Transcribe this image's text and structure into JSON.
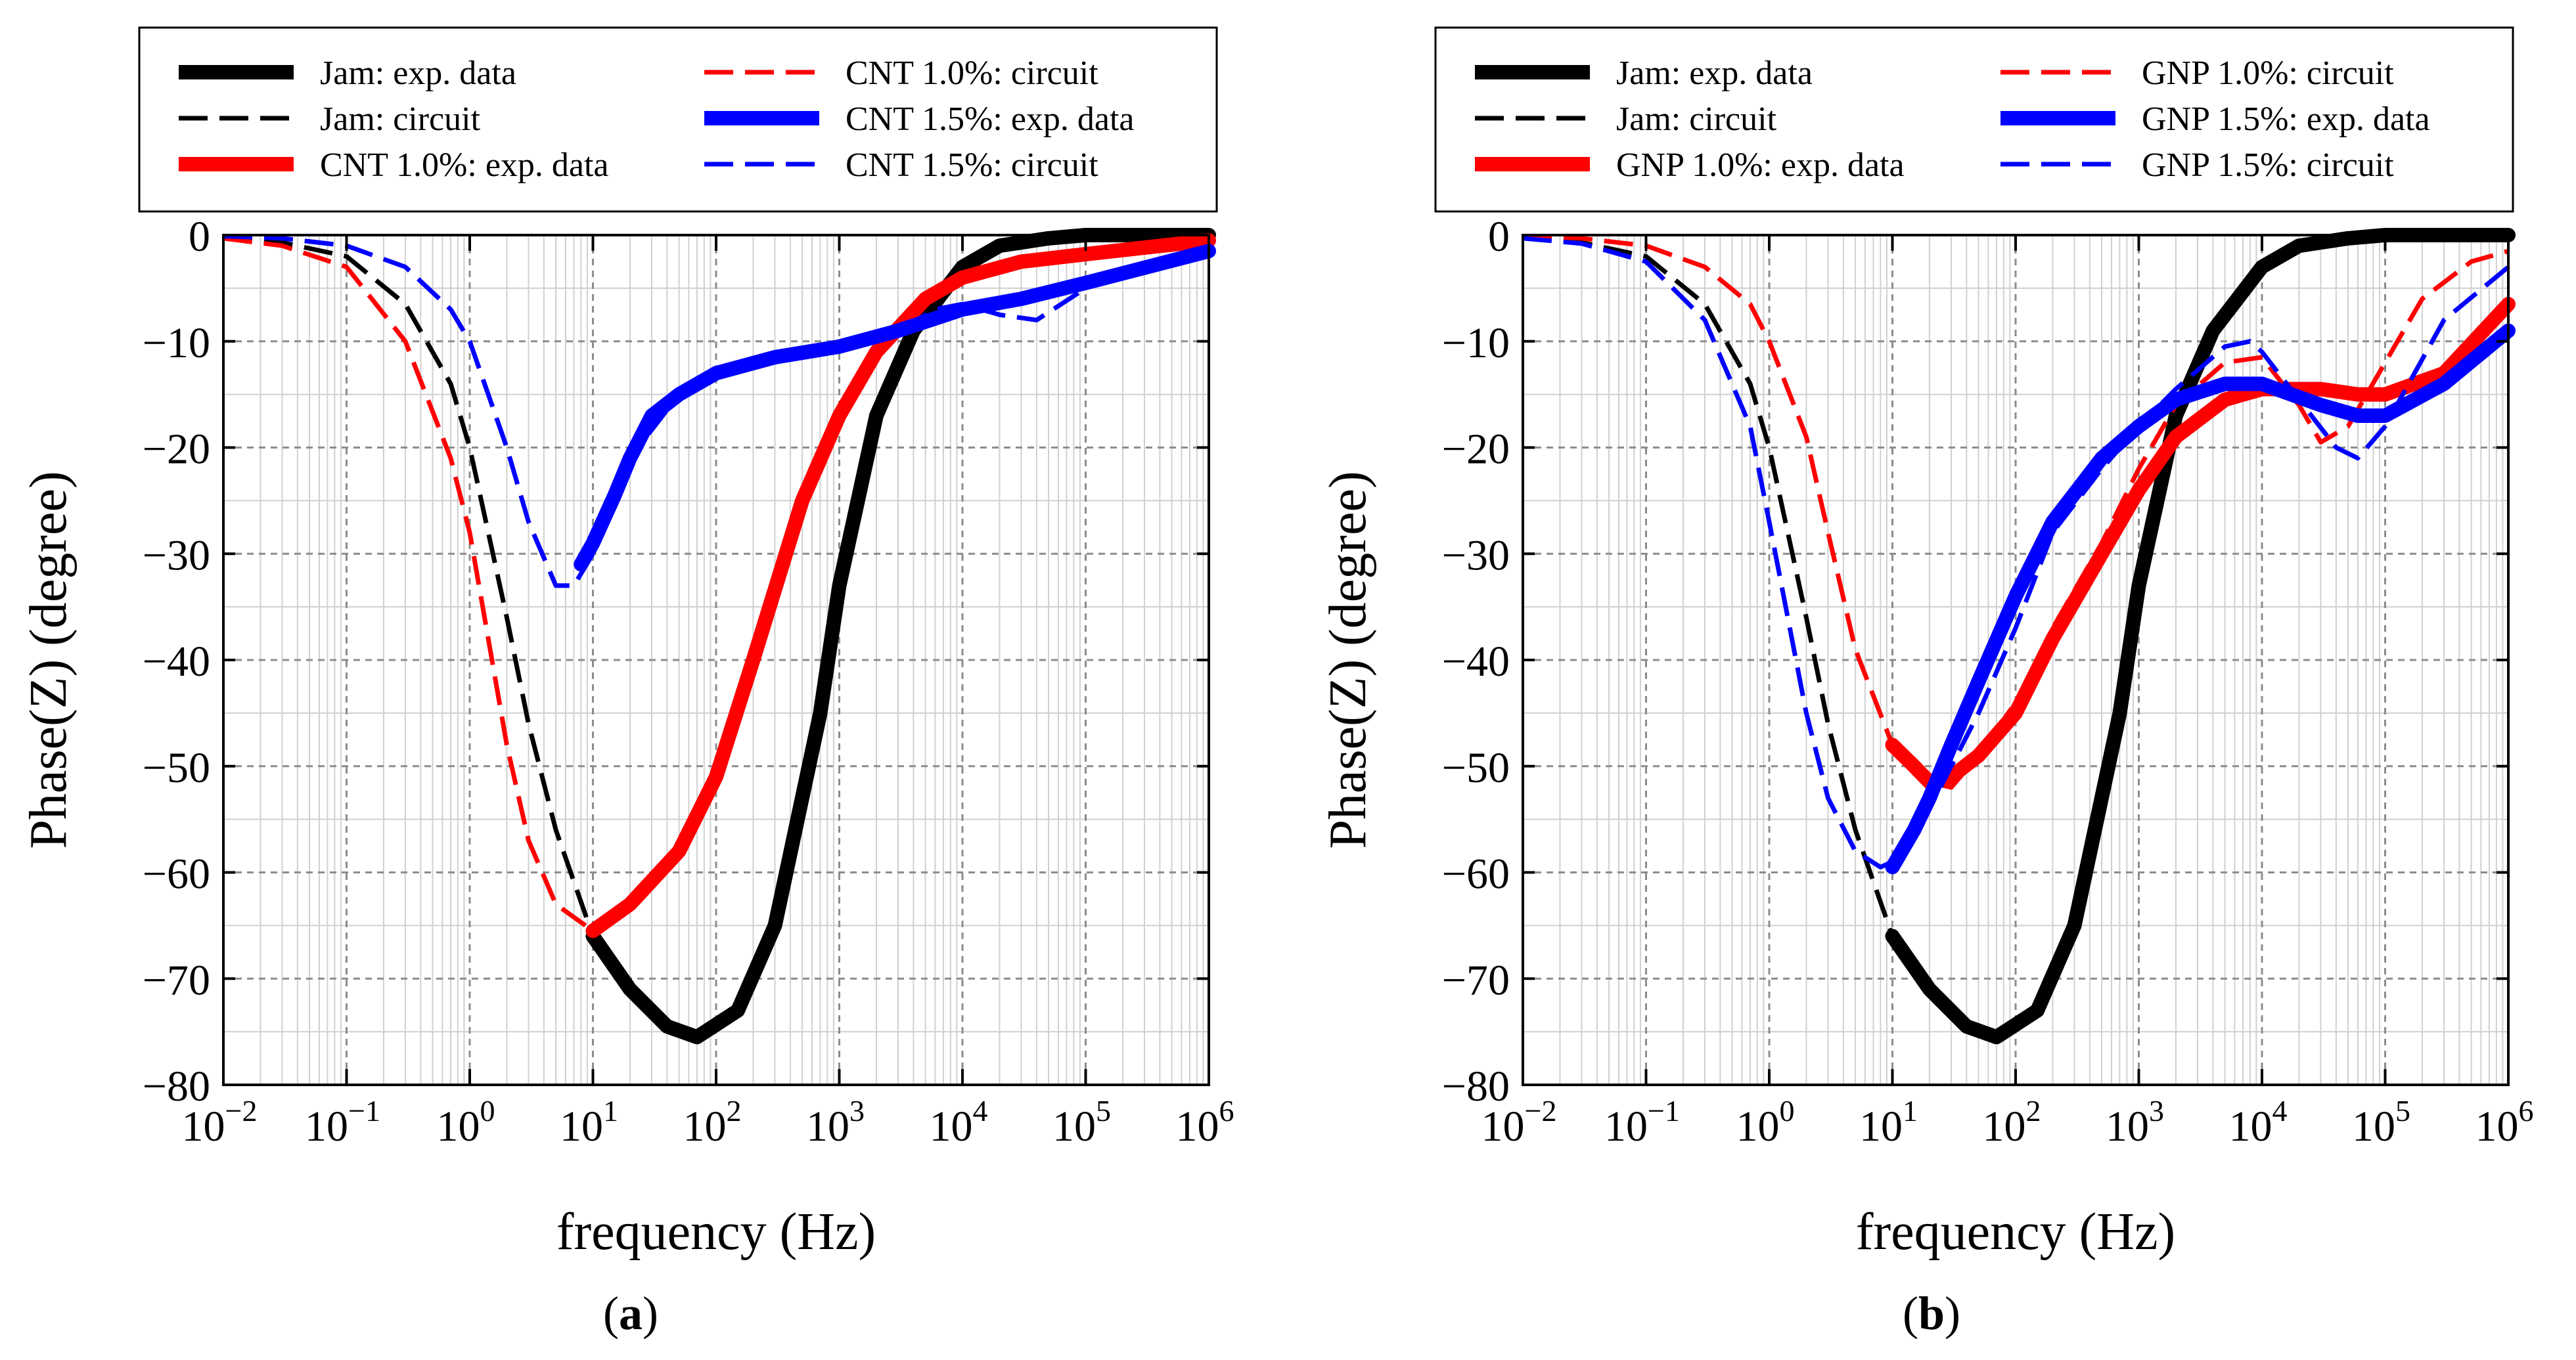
{
  "chart_data": [
    {
      "type": "line",
      "panel": "a",
      "caption_open": "(",
      "caption_letter": "a",
      "caption_close": ")",
      "xlabel": "frequency (Hz)",
      "ylabel": "Phase(Z) (degree)",
      "xscale": "log",
      "xlim": [
        0.01,
        1000000
      ],
      "ylim": [
        -80,
        0
      ],
      "yticks": [
        "0",
        "−10",
        "−20",
        "−30",
        "−40",
        "−50",
        "−60",
        "−70",
        "−80"
      ],
      "xticks": [
        "10−2",
        "10−1",
        "100",
        "101",
        "102",
        "103",
        "104",
        "105",
        "106"
      ],
      "grid": true,
      "legend_position": "top",
      "series": [
        {
          "name": "Jam: exp. data",
          "color": "#000000",
          "style": "solid",
          "x": [
            10,
            20,
            40,
            70,
            150,
            300,
            700,
            1000,
            2000,
            4000,
            10000,
            20000,
            50000,
            100000,
            1000000
          ],
          "y": [
            -66,
            -71,
            -74.5,
            -75.5,
            -73,
            -65,
            -45,
            -33,
            -17,
            -9,
            -3,
            -1,
            -0.3,
            0,
            0
          ]
        },
        {
          "name": "Jam: circuit",
          "color": "#000000",
          "style": "dashed",
          "x": [
            0.01,
            0.03,
            0.1,
            0.3,
            0.7,
            1,
            2,
            3,
            5,
            10
          ],
          "y": [
            -0.2,
            -0.7,
            -2,
            -6.5,
            -14,
            -20,
            -36,
            -46,
            -56,
            -66
          ]
        },
        {
          "name": "CNT 1.0%: exp. data",
          "color": "#ff0000",
          "style": "solid",
          "x": [
            10,
            20,
            50,
            100,
            200,
            500,
            1000,
            2000,
            5000,
            10000,
            30000,
            100000,
            1000000
          ],
          "y": [
            -65.5,
            -63,
            -58,
            -51,
            -40,
            -25,
            -17,
            -11,
            -6,
            -4,
            -2.5,
            -1.8,
            -0.5
          ]
        },
        {
          "name": "CNT 1.0%: circuit",
          "color": "#ff0000",
          "style": "dashed",
          "x": [
            0.01,
            0.03,
            0.1,
            0.3,
            0.7,
            1,
            2,
            3,
            5,
            10
          ],
          "y": [
            -0.3,
            -1,
            -3,
            -10,
            -21,
            -28,
            -48,
            -57,
            -63,
            -65.5
          ]
        },
        {
          "name": "CNT 1.5%: exp. data",
          "color": "#0000ff",
          "style": "solid",
          "x": [
            8,
            10,
            15,
            20,
            30,
            50,
            100,
            300,
            1000,
            3000,
            10000,
            30000,
            100000,
            1000000
          ],
          "y": [
            -31,
            -29,
            -24.5,
            -21,
            -17,
            -15,
            -13,
            -11.5,
            -10.5,
            -9,
            -7,
            -6,
            -4.5,
            -1.5
          ]
        },
        {
          "name": "CNT 1.5%: circuit",
          "color": "#0000ff",
          "style": "dashed",
          "x": [
            0.01,
            0.03,
            0.1,
            0.3,
            0.7,
            1,
            2,
            3,
            5,
            7,
            10,
            20,
            50,
            100,
            300,
            1000,
            3000,
            6000,
            10000,
            20000,
            40000,
            100000,
            300000,
            1000000
          ],
          "y": [
            -0.1,
            -0.3,
            -1,
            -3,
            -7,
            -10,
            -20,
            -27,
            -33,
            -33,
            -30,
            -21,
            -15,
            -13,
            -11,
            -10.5,
            -9,
            -7,
            -6.5,
            -7.5,
            -8,
            -5,
            -3,
            -1.5
          ]
        }
      ]
    },
    {
      "type": "line",
      "panel": "b",
      "caption_open": "(",
      "caption_letter": "b",
      "caption_close": ")",
      "xlabel": "frequency (Hz)",
      "ylabel": "Phase(Z) (degree)",
      "xscale": "log",
      "xlim": [
        0.01,
        1000000
      ],
      "ylim": [
        -80,
        0
      ],
      "yticks": [
        "0",
        "−10",
        "−20",
        "−30",
        "−40",
        "−50",
        "−60",
        "−70",
        "−80"
      ],
      "xticks": [
        "10−2",
        "10−1",
        "100",
        "101",
        "102",
        "103",
        "104",
        "105",
        "106"
      ],
      "grid": true,
      "legend_position": "top",
      "series": [
        {
          "name": "Jam: exp. data",
          "color": "#000000",
          "style": "solid",
          "x": [
            10,
            20,
            40,
            70,
            150,
            300,
            700,
            1000,
            2000,
            4000,
            10000,
            20000,
            50000,
            100000,
            1000000
          ],
          "y": [
            -66,
            -71,
            -74.5,
            -75.5,
            -73,
            -65,
            -45,
            -33,
            -17,
            -9,
            -3,
            -1,
            -0.3,
            0,
            0
          ]
        },
        {
          "name": "Jam: circuit",
          "color": "#000000",
          "style": "dashed",
          "x": [
            0.01,
            0.03,
            0.1,
            0.3,
            0.7,
            1,
            2,
            3,
            5,
            10
          ],
          "y": [
            -0.2,
            -0.7,
            -2,
            -6.5,
            -14,
            -20,
            -36,
            -46,
            -56,
            -66
          ]
        },
        {
          "name": "GNP 1.0%: exp. data",
          "color": "#ff0000",
          "style": "solid",
          "x": [
            10,
            15,
            20,
            30,
            50,
            100,
            200,
            500,
            1000,
            2000,
            5000,
            10000,
            30000,
            60000,
            100000,
            300000,
            1000000
          ],
          "y": [
            -48,
            -50,
            -51.5,
            -51,
            -49,
            -45,
            -38,
            -30,
            -24,
            -19,
            -15.5,
            -14.5,
            -14.5,
            -15,
            -15,
            -13,
            -6.5
          ]
        },
        {
          "name": "GNP 1.0%: circuit",
          "color": "#ff0000",
          "style": "dashed",
          "x": [
            0.01,
            0.03,
            0.1,
            0.3,
            0.7,
            1,
            2,
            3,
            5,
            10,
            20,
            30,
            50,
            100,
            200,
            500,
            1000,
            2000,
            5000,
            10000,
            20000,
            30000,
            50000,
            100000,
            200000,
            500000,
            1000000
          ],
          "y": [
            -0.1,
            -0.3,
            -1,
            -3,
            -6.5,
            -10,
            -19,
            -28,
            -39,
            -48,
            -51.5,
            -52,
            -49,
            -44,
            -37,
            -29,
            -22,
            -16,
            -12,
            -11.5,
            -16,
            -19.5,
            -18,
            -12,
            -6,
            -2.5,
            -1.5
          ]
        },
        {
          "name": "GNP 1.5%: exp. data",
          "color": "#0000ff",
          "style": "solid",
          "x": [
            10,
            15,
            20,
            30,
            50,
            100,
            200,
            500,
            1000,
            2000,
            5000,
            10000,
            30000,
            60000,
            100000,
            300000,
            1000000
          ],
          "y": [
            -59.5,
            -56,
            -53,
            -48,
            -42,
            -34,
            -27,
            -21,
            -18,
            -15.5,
            -14,
            -14,
            -16,
            -17,
            -17,
            -14,
            -9
          ]
        },
        {
          "name": "GNP 1.5%: circuit",
          "color": "#0000ff",
          "style": "dashed",
          "x": [
            0.01,
            0.03,
            0.1,
            0.3,
            0.7,
            1,
            2,
            3,
            5,
            8,
            10,
            20,
            50,
            100,
            200,
            500,
            1000,
            2000,
            5000,
            8000,
            10000,
            20000,
            40000,
            60000,
            100000,
            300000,
            1000000
          ],
          "y": [
            -0.3,
            -0.8,
            -2.5,
            -8,
            -18,
            -27,
            -45,
            -53,
            -58,
            -59.5,
            -59,
            -54,
            -45,
            -37,
            -28,
            -22,
            -18,
            -14.5,
            -10.5,
            -10,
            -11,
            -15.5,
            -20,
            -21,
            -18,
            -8,
            -3
          ]
        }
      ]
    }
  ]
}
